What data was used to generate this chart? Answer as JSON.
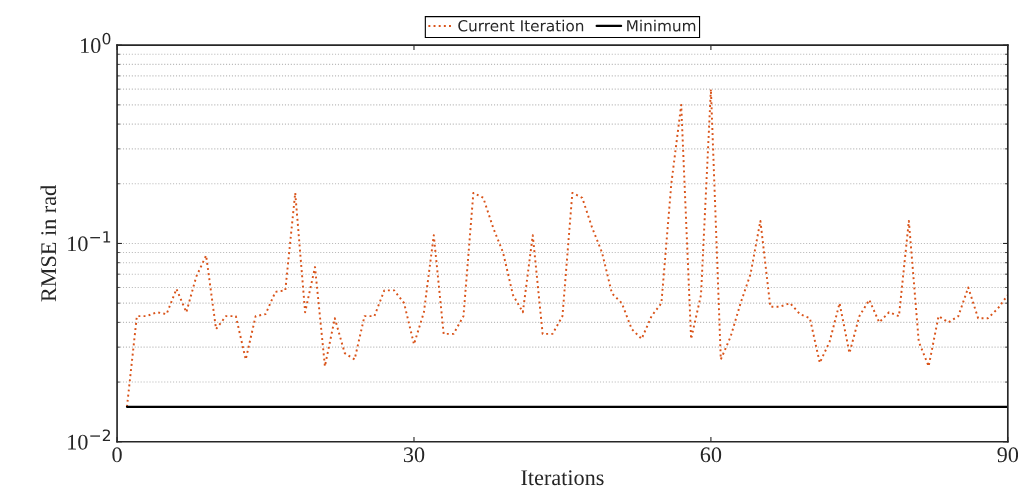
{
  "chart_data": {
    "type": "line",
    "xlabel": "Iterations",
    "ylabel": "RMSE in rad",
    "log": "y",
    "grid": "y",
    "legend": "top",
    "marker": "none",
    "xlim": [
      0,
      90
    ],
    "xticks": [
      0,
      30,
      60,
      90
    ],
    "ylim": [
      0.01,
      1
    ],
    "yticks": [
      {
        "value": 0.01,
        "label": "10$^{−2}$"
      },
      {
        "value": 0.1,
        "label": "10$^{−1}$"
      },
      {
        "value": 1,
        "label": "10$^{0}$"
      }
    ],
    "series": [
      {
        "name": "Current Iteration",
        "color": "#d95319",
        "line_style": "dotted",
        "x": [
          1,
          2,
          3,
          4,
          5,
          6,
          7,
          8,
          9,
          10,
          11,
          12,
          13,
          14,
          15,
          16,
          17,
          18,
          19,
          20,
          21,
          22,
          23,
          24,
          25,
          26,
          27,
          28,
          29,
          30,
          31,
          32,
          33,
          34,
          35,
          36,
          37,
          38,
          39,
          40,
          41,
          42,
          43,
          44,
          45,
          46,
          47,
          48,
          49,
          50,
          51,
          52,
          53,
          54,
          55,
          56,
          57,
          58,
          59,
          60,
          61,
          62,
          63,
          64,
          65,
          66,
          67,
          68,
          69,
          70,
          71,
          72,
          73,
          74,
          75,
          76,
          77,
          78,
          79,
          80,
          81,
          82,
          83,
          84,
          85,
          86,
          87,
          88,
          89,
          90
        ],
        "values": [
          0.015,
          0.043,
          0.043,
          0.045,
          0.044,
          0.059,
          0.045,
          0.068,
          0.087,
          0.037,
          0.043,
          0.043,
          0.026,
          0.043,
          0.044,
          0.057,
          0.058,
          0.18,
          0.045,
          0.076,
          0.024,
          0.042,
          0.028,
          0.026,
          0.043,
          0.043,
          0.058,
          0.058,
          0.05,
          0.031,
          0.045,
          0.11,
          0.035,
          0.035,
          0.043,
          0.18,
          0.17,
          0.12,
          0.09,
          0.055,
          0.045,
          0.11,
          0.035,
          0.035,
          0.043,
          0.18,
          0.17,
          0.12,
          0.09,
          0.056,
          0.05,
          0.037,
          0.033,
          0.043,
          0.05,
          0.2,
          0.5,
          0.033,
          0.055,
          0.6,
          0.026,
          0.034,
          0.05,
          0.07,
          0.13,
          0.048,
          0.048,
          0.05,
          0.044,
          0.042,
          0.025,
          0.032,
          0.05,
          0.028,
          0.043,
          0.052,
          0.04,
          0.045,
          0.043,
          0.13,
          0.032,
          0.024,
          0.043,
          0.04,
          0.043,
          0.06,
          0.042,
          0.042,
          0.047,
          0.055
        ]
      },
      {
        "name": "Minimum",
        "color": "#000000",
        "line_style": "solid",
        "x": [
          1,
          90
        ],
        "values": [
          0.015,
          0.015
        ]
      }
    ]
  }
}
